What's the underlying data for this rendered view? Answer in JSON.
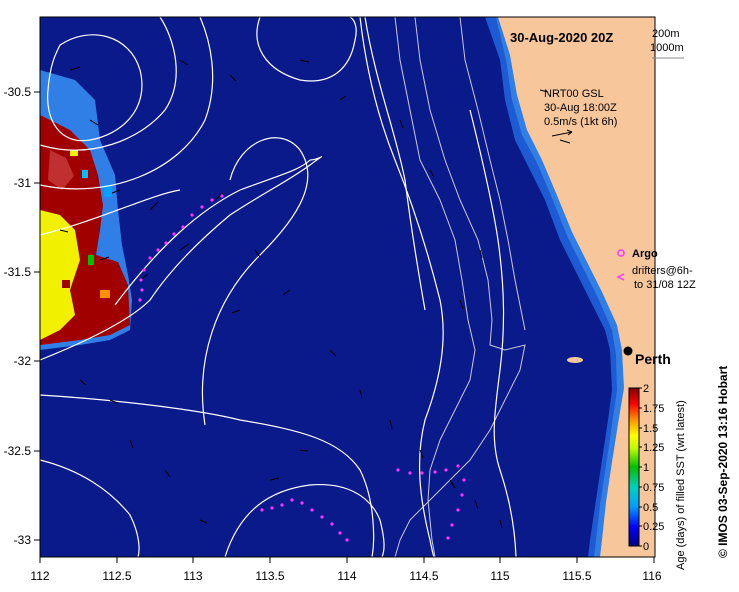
{
  "map": {
    "title": "30-Aug-2020 20Z",
    "depth_legend": [
      "200m",
      "1000m"
    ],
    "current_source": [
      "NRT00 GSL",
      "30-Aug 18:00Z",
      "0.5m/s (1kt 6h)"
    ],
    "argo_label": "Argo",
    "drifters_label": [
      "drifters@6h-",
      "to 31/08 12Z"
    ],
    "city": "Perth",
    "credit": "© IMOS 03-Sep-2020 13:16 Hobart",
    "x_ticks": [
      "112",
      "112.5",
      "113",
      "113.5",
      "114",
      "114.5",
      "115",
      "115.5",
      "116"
    ],
    "y_ticks": [
      "-30.5",
      "-31",
      "-31.5",
      "-32",
      "-32.5",
      "-33"
    ],
    "colorbar": {
      "title": "Age (days) of filled SST (wrt latest)",
      "ticks": [
        "2",
        "1.75",
        "1.5",
        "1.25",
        "1",
        "0.75",
        "0.5",
        "0.25",
        "0"
      ]
    },
    "colors": {
      "ocean": "#0a1a8a",
      "shelf": "#1e5ad2",
      "inner_shelf": "#2f7fe6",
      "land": "#f7c69b",
      "dark_red": "#a00000",
      "yellow": "#f0f000",
      "drifter": "#ff33ff"
    }
  }
}
